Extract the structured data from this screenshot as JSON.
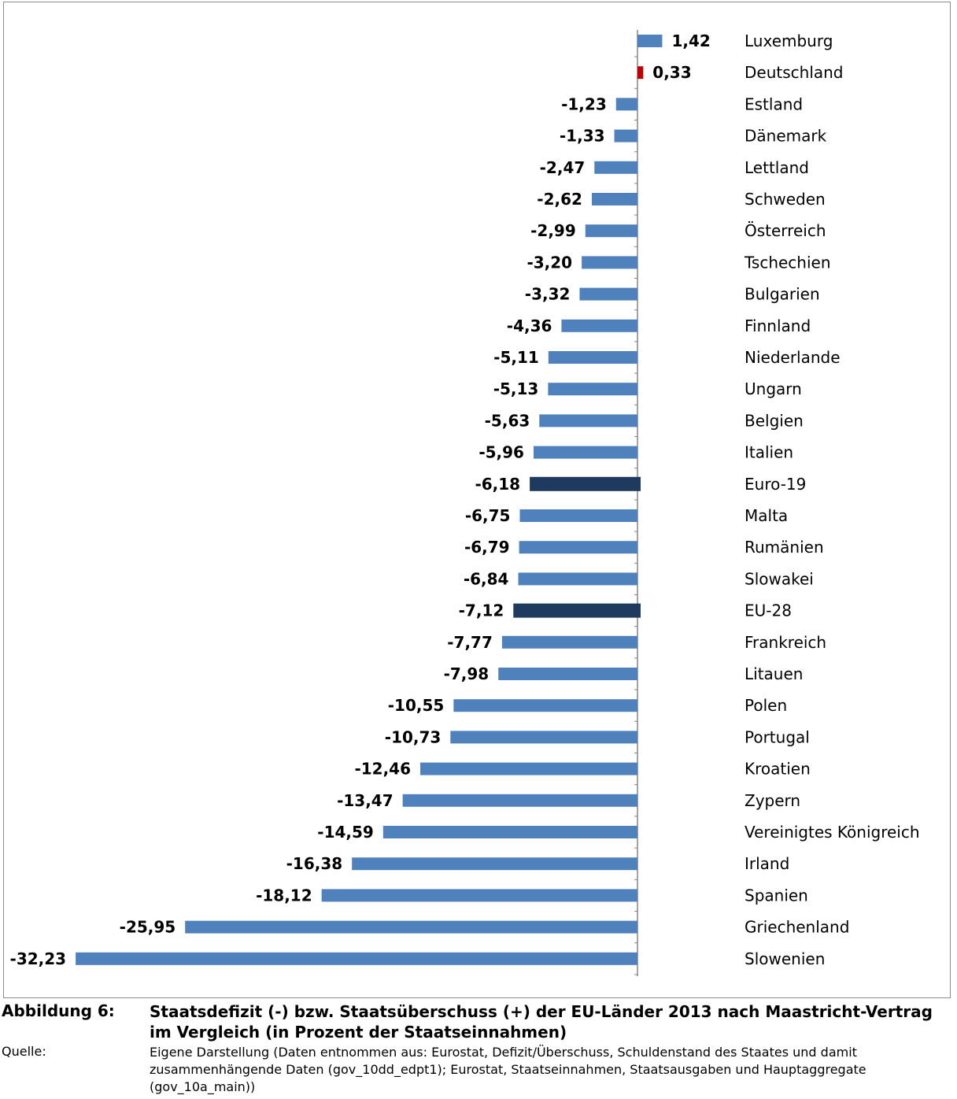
{
  "chart_data": {
    "type": "bar",
    "orientation": "horizontal",
    "categories": [
      "Luxemburg",
      "Deutschland",
      "Estland",
      "Dänemark",
      "Lettland",
      "Schweden",
      "Österreich",
      "Tschechien",
      "Bulgarien",
      "Finnland",
      "Niederlande",
      "Ungarn",
      "Belgien",
      "Italien",
      "Euro-19",
      "Malta",
      "Rumänien",
      "Slowakei",
      "EU-28",
      "Frankreich",
      "Litauen",
      "Polen",
      "Portugal",
      "Kroatien",
      "Zypern",
      "Vereinigtes Königreich",
      "Irland",
      "Spanien",
      "Griechenland",
      "Slowenien"
    ],
    "values": [
      1.42,
      0.33,
      -1.23,
      -1.33,
      -2.47,
      -2.62,
      -2.99,
      -3.2,
      -3.32,
      -4.36,
      -5.11,
      -5.13,
      -5.63,
      -5.96,
      -6.18,
      -6.75,
      -6.79,
      -6.84,
      -7.12,
      -7.77,
      -7.98,
      -10.55,
      -10.73,
      -12.46,
      -13.47,
      -14.59,
      -16.38,
      -18.12,
      -25.95,
      -32.23
    ],
    "labels": [
      "1,42",
      "0,33",
      "-1,23",
      "-1,33",
      "-2,47",
      "-2,62",
      "-2,99",
      "-3,20",
      "-3,32",
      "-4,36",
      "-5,11",
      "-5,13",
      "-5,63",
      "-5,96",
      "-6,18",
      "-6,75",
      "-6,79",
      "-6,84",
      "-7,12",
      "-7,77",
      "-7,98",
      "-10,55",
      "-10,73",
      "-12,46",
      "-13,47",
      "-14,59",
      "-16,38",
      "-18,12",
      "-25,95",
      "-32,23"
    ],
    "colors": [
      "#4f81bd",
      "#c00000",
      "#4f81bd",
      "#4f81bd",
      "#4f81bd",
      "#4f81bd",
      "#4f81bd",
      "#4f81bd",
      "#4f81bd",
      "#4f81bd",
      "#4f81bd",
      "#4f81bd",
      "#4f81bd",
      "#4f81bd",
      "#1f3a5f",
      "#4f81bd",
      "#4f81bd",
      "#4f81bd",
      "#1f3a5f",
      "#4f81bd",
      "#4f81bd",
      "#4f81bd",
      "#4f81bd",
      "#4f81bd",
      "#4f81bd",
      "#4f81bd",
      "#4f81bd",
      "#4f81bd",
      "#4f81bd",
      "#4f81bd"
    ],
    "xlim": [
      -33,
      1.5
    ],
    "grid": false,
    "legend": false
  },
  "caption": {
    "figure_key": "Abbildung 6:",
    "figure_title": "Staatsdefizit (-) bzw. Staatsüberschuss (+) der EU-Länder 2013 nach Maastricht-Vertrag im Vergleich (in Prozent der Staatseinnahmen)",
    "source_key": "Quelle:",
    "source_text": "Eigene Darstellung (Daten entnommen aus: Eurostat, Defizit/Überschuss, Schuldenstand des Staates und damit zusammenhängende Daten (gov_10dd_edpt1); Eurostat, Staatseinnahmen, Staatsausgaben und Hauptaggregate (gov_10a_main))"
  }
}
